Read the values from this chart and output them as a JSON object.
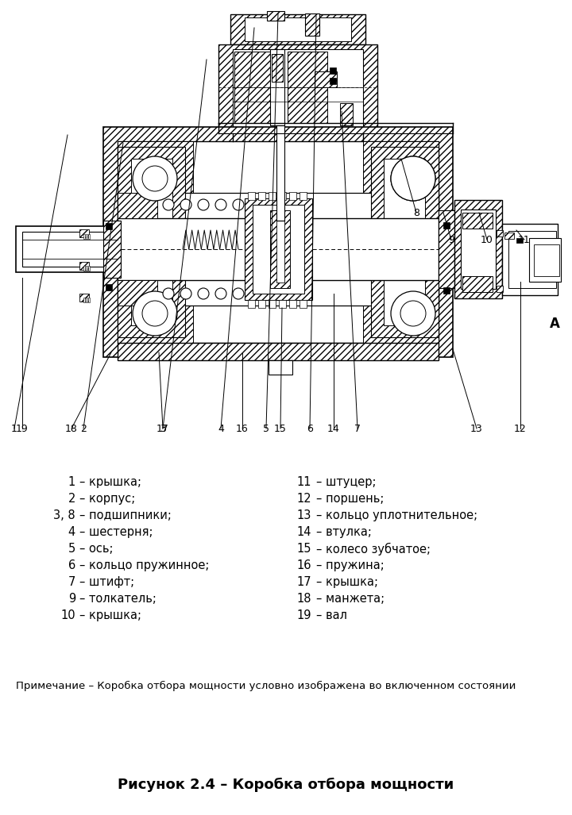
{
  "title": "Рисунок 2.4 – Коробка отбора мощности",
  "note": "Примечание – Коробка отбора мощности условно изображена во включенном состоянии",
  "legend_left": [
    [
      "1",
      "– крышка;"
    ],
    [
      "2",
      "– корпус;"
    ],
    [
      "3, 8",
      "– подшипники;"
    ],
    [
      "4",
      "– шестерня;"
    ],
    [
      "5",
      "– ось;"
    ],
    [
      "6",
      "– кольцо пружинное;"
    ],
    [
      "7",
      "– штифт;"
    ],
    [
      "9",
      "– толкатель;"
    ],
    [
      "10",
      "– крышка;"
    ]
  ],
  "legend_right": [
    [
      "11",
      "– штуцер;"
    ],
    [
      "12",
      "– поршень;"
    ],
    [
      "13",
      "– кольцо уплотнительное;"
    ],
    [
      "14",
      "– втулка;"
    ],
    [
      "15",
      "– колесо зубчатое;"
    ],
    [
      "16",
      "– пружина;"
    ],
    [
      "17",
      "– крышка;"
    ],
    [
      "18",
      "– манжета;"
    ],
    [
      "19",
      "– вал"
    ]
  ],
  "bg_color": "#ffffff",
  "text_color": "#000000",
  "label_fontsize": 10.5,
  "title_fontsize": 13,
  "note_fontsize": 9.5,
  "num_label_fontsize": 9
}
